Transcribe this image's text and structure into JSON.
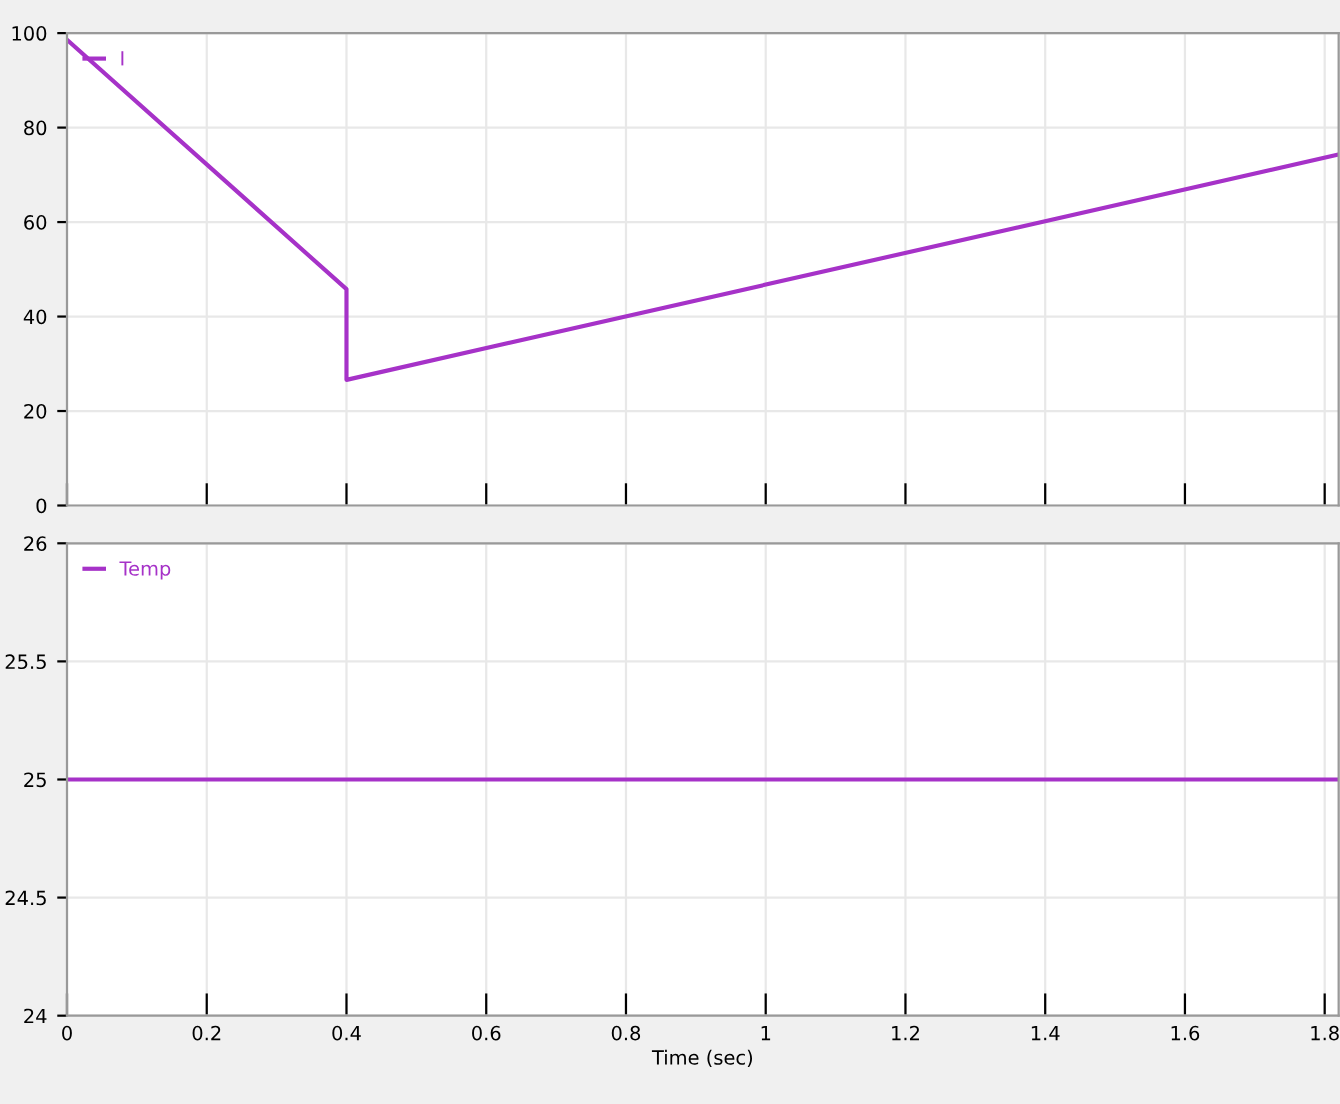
{
  "chart_data": [
    {
      "type": "line",
      "x": [
        0,
        0.4,
        0.4,
        1.82
      ],
      "series": [
        {
          "name": "I",
          "color": "#a632c8",
          "values": [
            98.6,
            45.8,
            26.6,
            74.3
          ]
        }
      ],
      "xlim": [
        0,
        1.82
      ],
      "xticks": [
        0,
        0.2,
        0.4,
        0.6,
        0.8,
        1,
        1.2,
        1.4,
        1.6,
        1.8
      ],
      "ylim": [
        0,
        100
      ],
      "yticks": [
        0,
        20,
        40,
        60,
        80,
        100
      ],
      "tick_labels": "y",
      "grid": true,
      "legend": "top left",
      "marker": "none",
      "line_style": "solid"
    },
    {
      "type": "line",
      "x": [
        0,
        1.82
      ],
      "series": [
        {
          "name": "Temp",
          "color": "#a632c8",
          "values": [
            25,
            25
          ]
        }
      ],
      "xlim": [
        0,
        1.82
      ],
      "xticks": [
        0,
        0.2,
        0.4,
        0.6,
        0.8,
        1,
        1.2,
        1.4,
        1.6,
        1.8
      ],
      "ylim": [
        24,
        26
      ],
      "yticks": [
        24,
        24.5,
        25,
        25.5,
        26
      ],
      "xlabel": "Time (sec)",
      "grid": true,
      "legend": "top left",
      "marker": "none",
      "line_style": "solid"
    }
  ]
}
